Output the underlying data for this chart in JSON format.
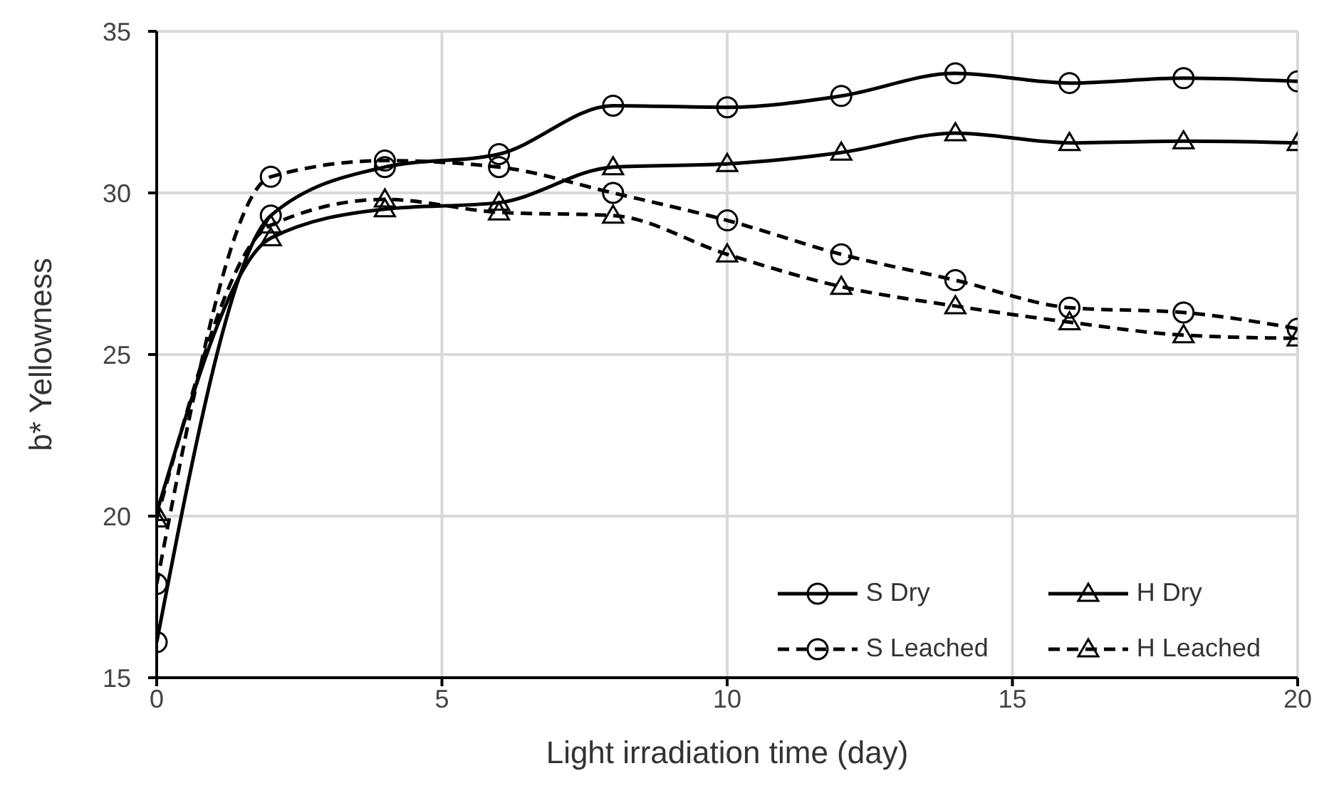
{
  "chart_data": {
    "type": "line",
    "xlabel": "Light irradiation time (day)",
    "ylabel": "b* Yellowness",
    "x": [
      0,
      2,
      4,
      6,
      8,
      10,
      12,
      14,
      16,
      18,
      20
    ],
    "series": [
      {
        "name": "S Dry",
        "color": "#000000",
        "marker": "circle",
        "line_style": "solid",
        "values": [
          16.1,
          29.3,
          30.8,
          31.2,
          32.7,
          32.65,
          33.0,
          33.7,
          33.4,
          33.55,
          33.45
        ]
      },
      {
        "name": "H Dry",
        "color": "#000000",
        "marker": "triangle",
        "line_style": "solid",
        "values": [
          20.1,
          28.6,
          29.5,
          29.7,
          30.8,
          30.9,
          31.25,
          31.85,
          31.55,
          31.6,
          31.55
        ]
      },
      {
        "name": "S Leached",
        "color": "#000000",
        "marker": "circle",
        "line_style": "dashed",
        "values": [
          17.9,
          30.5,
          31.0,
          30.8,
          30.0,
          29.15,
          28.1,
          27.3,
          26.45,
          26.3,
          25.8
        ]
      },
      {
        "name": "H Leached",
        "color": "#000000",
        "marker": "triangle",
        "line_style": "dashed",
        "values": [
          19.9,
          29.0,
          29.8,
          29.4,
          29.3,
          28.1,
          27.1,
          26.5,
          26.0,
          25.6,
          25.5
        ]
      }
    ],
    "xlim": [
      0,
      20
    ],
    "xticks": [
      0,
      5,
      10,
      15,
      20
    ],
    "ylim": [
      15,
      35
    ],
    "yticks": [
      15,
      20,
      25,
      30,
      35
    ],
    "grid": true,
    "legend": "bottom right"
  }
}
